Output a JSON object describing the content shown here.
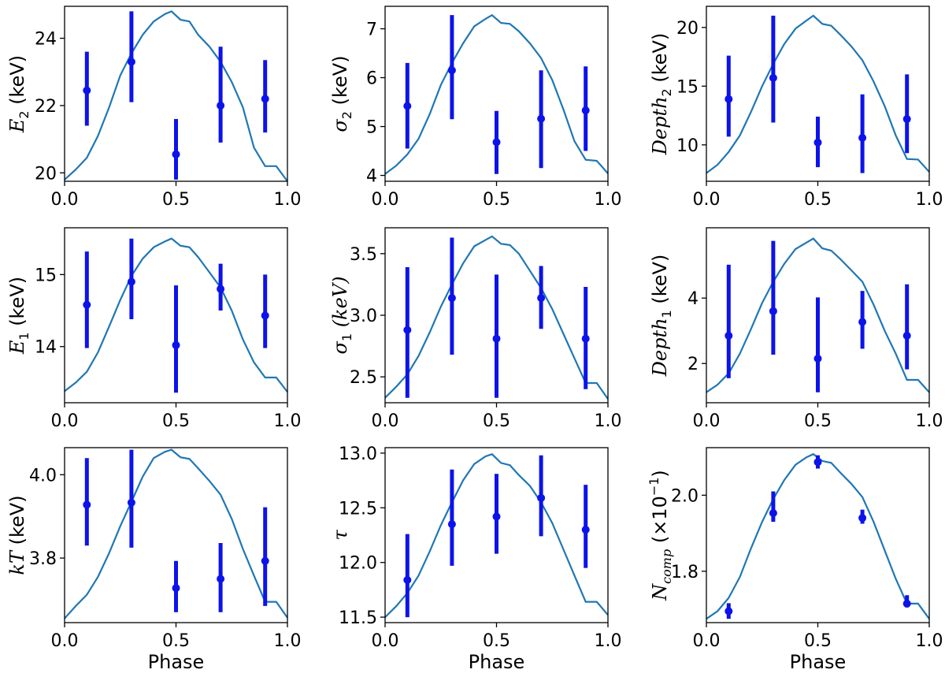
{
  "chart_data": [
    {
      "type": "scatter-errorbar",
      "ylabel": {
        "sym": "E",
        "sub": "2",
        "sup": "",
        "unit": "(keV)",
        "italic_unit": false
      },
      "xlabel": "",
      "xlim": [
        0.0,
        1.0
      ],
      "ylim": [
        19.75,
        24.95
      ],
      "x_ticks": [
        0.0,
        0.5,
        1.0
      ],
      "x_tick_labels": [
        "0.0",
        "0.5",
        "1.0"
      ],
      "y_ticks": [
        20,
        22,
        24
      ],
      "y_tick_labels": [
        "20",
        "22",
        "24"
      ],
      "points": [
        {
          "x": 0.1,
          "y": 22.45,
          "lo": 21.4,
          "hi": 23.6
        },
        {
          "x": 0.3,
          "y": 23.3,
          "lo": 22.1,
          "hi": 24.8
        },
        {
          "x": 0.5,
          "y": 20.55,
          "lo": 19.8,
          "hi": 21.6
        },
        {
          "x": 0.7,
          "y": 22.0,
          "lo": 20.9,
          "hi": 23.75
        },
        {
          "x": 0.9,
          "y": 22.2,
          "lo": 21.2,
          "hi": 23.35
        }
      ],
      "model_x": [
        0.0,
        0.05,
        0.1,
        0.15,
        0.2,
        0.25,
        0.3,
        0.35,
        0.4,
        0.45,
        0.48,
        0.52,
        0.56,
        0.6,
        0.65,
        0.7,
        0.75,
        0.8,
        0.85,
        0.9,
        0.95,
        1.0
      ],
      "model_y": [
        19.8,
        20.1,
        20.45,
        21.1,
        21.95,
        22.9,
        23.55,
        24.1,
        24.5,
        24.72,
        24.8,
        24.55,
        24.5,
        24.1,
        23.75,
        23.3,
        22.7,
        21.95,
        20.75,
        20.2,
        20.2,
        19.75
      ]
    },
    {
      "type": "scatter-errorbar",
      "ylabel": {
        "sym": "σ",
        "sub": "2",
        "sup": "",
        "unit": "(keV)",
        "italic_unit": false
      },
      "xlabel": "",
      "xlim": [
        0.0,
        1.0
      ],
      "ylim": [
        3.88,
        7.46
      ],
      "x_ticks": [
        0.0,
        0.5,
        1.0
      ],
      "x_tick_labels": [
        "0.0",
        "0.5",
        "1.0"
      ],
      "y_ticks": [
        4,
        5,
        6,
        7
      ],
      "y_tick_labels": [
        "4",
        "5",
        "6",
        "7"
      ],
      "points": [
        {
          "x": 0.1,
          "y": 5.42,
          "lo": 4.55,
          "hi": 6.3
        },
        {
          "x": 0.3,
          "y": 6.15,
          "lo": 5.15,
          "hi": 7.28
        },
        {
          "x": 0.5,
          "y": 4.68,
          "lo": 4.03,
          "hi": 5.32
        },
        {
          "x": 0.7,
          "y": 5.16,
          "lo": 4.15,
          "hi": 6.15
        },
        {
          "x": 0.9,
          "y": 5.33,
          "lo": 4.5,
          "hi": 6.23
        }
      ],
      "model_x": [
        0.0,
        0.05,
        0.1,
        0.15,
        0.2,
        0.25,
        0.3,
        0.35,
        0.4,
        0.45,
        0.48,
        0.52,
        0.56,
        0.6,
        0.65,
        0.7,
        0.75,
        0.8,
        0.85,
        0.9,
        0.95,
        1.0
      ],
      "model_y": [
        4.03,
        4.2,
        4.43,
        4.75,
        5.25,
        5.85,
        6.3,
        6.7,
        7.05,
        7.2,
        7.28,
        7.12,
        7.1,
        6.95,
        6.7,
        6.4,
        5.95,
        5.35,
        4.7,
        4.32,
        4.3,
        4.04
      ]
    },
    {
      "type": "scatter-errorbar",
      "ylabel": {
        "sym": "Depth",
        "sub": "2",
        "sup": "",
        "unit": "(keV)",
        "italic_unit": false
      },
      "xlabel": "",
      "xlim": [
        0.0,
        1.0
      ],
      "ylim": [
        6.9,
        21.8
      ],
      "x_ticks": [
        0.0,
        0.5,
        1.0
      ],
      "x_tick_labels": [
        "0.0",
        "0.5",
        "1.0"
      ],
      "y_ticks": [
        10,
        15,
        20
      ],
      "y_tick_labels": [
        "10",
        "15",
        "20"
      ],
      "points": [
        {
          "x": 0.1,
          "y": 13.9,
          "lo": 10.7,
          "hi": 17.6
        },
        {
          "x": 0.3,
          "y": 15.7,
          "lo": 11.9,
          "hi": 21.0
        },
        {
          "x": 0.5,
          "y": 10.2,
          "lo": 8.1,
          "hi": 12.4
        },
        {
          "x": 0.7,
          "y": 10.6,
          "lo": 7.6,
          "hi": 14.3
        },
        {
          "x": 0.9,
          "y": 12.2,
          "lo": 9.3,
          "hi": 16.0
        }
      ],
      "model_x": [
        0.0,
        0.05,
        0.1,
        0.15,
        0.2,
        0.25,
        0.3,
        0.35,
        0.4,
        0.45,
        0.48,
        0.52,
        0.56,
        0.6,
        0.65,
        0.7,
        0.75,
        0.8,
        0.85,
        0.9,
        0.95,
        1.0
      ],
      "model_y": [
        7.6,
        8.3,
        9.4,
        10.8,
        12.8,
        15.0,
        16.9,
        18.6,
        19.9,
        20.6,
        21.0,
        20.3,
        20.15,
        19.4,
        18.4,
        17.2,
        15.4,
        13.3,
        10.8,
        8.8,
        8.75,
        7.7
      ]
    },
    {
      "type": "scatter-errorbar",
      "ylabel": {
        "sym": "E",
        "sub": "1",
        "sup": "",
        "unit": "(keV)",
        "italic_unit": false
      },
      "xlabel": "",
      "xlim": [
        0.0,
        1.0
      ],
      "ylim": [
        13.22,
        15.65
      ],
      "x_ticks": [
        0.0,
        0.5,
        1.0
      ],
      "x_tick_labels": [
        "0.0",
        "0.5",
        "1.0"
      ],
      "y_ticks": [
        14,
        15
      ],
      "y_tick_labels": [
        "14",
        "15"
      ],
      "points": [
        {
          "x": 0.1,
          "y": 14.58,
          "lo": 13.98,
          "hi": 15.32
        },
        {
          "x": 0.3,
          "y": 14.9,
          "lo": 14.38,
          "hi": 15.5
        },
        {
          "x": 0.5,
          "y": 14.02,
          "lo": 13.36,
          "hi": 14.85
        },
        {
          "x": 0.7,
          "y": 14.8,
          "lo": 14.5,
          "hi": 15.15
        },
        {
          "x": 0.9,
          "y": 14.43,
          "lo": 13.98,
          "hi": 15.0
        }
      ],
      "model_x": [
        0.0,
        0.05,
        0.1,
        0.15,
        0.2,
        0.25,
        0.3,
        0.35,
        0.4,
        0.45,
        0.48,
        0.52,
        0.56,
        0.6,
        0.65,
        0.7,
        0.75,
        0.8,
        0.85,
        0.9,
        0.95,
        1.0
      ],
      "model_y": [
        13.38,
        13.5,
        13.65,
        13.92,
        14.28,
        14.65,
        14.98,
        15.22,
        15.38,
        15.46,
        15.5,
        15.4,
        15.38,
        15.24,
        15.03,
        14.82,
        14.5,
        14.1,
        13.78,
        13.57,
        13.57,
        13.37
      ]
    },
    {
      "type": "scatter-errorbar",
      "ylabel": {
        "sym": "σ",
        "sub": "1",
        "sup": "",
        "unit": "(keV)",
        "italic_unit": true
      },
      "xlabel": "",
      "xlim": [
        0.0,
        1.0
      ],
      "ylim": [
        2.29,
        3.71
      ],
      "x_ticks": [
        0.0,
        0.5,
        1.0
      ],
      "x_tick_labels": [
        "0.0",
        "0.5",
        "1.0"
      ],
      "y_ticks": [
        2.5,
        3.0,
        3.5
      ],
      "y_tick_labels": [
        "2.5",
        "3.0",
        "3.5"
      ],
      "points": [
        {
          "x": 0.1,
          "y": 2.88,
          "lo": 2.33,
          "hi": 3.39
        },
        {
          "x": 0.3,
          "y": 3.14,
          "lo": 2.68,
          "hi": 3.63
        },
        {
          "x": 0.5,
          "y": 2.81,
          "lo": 2.33,
          "hi": 3.33
        },
        {
          "x": 0.7,
          "y": 3.14,
          "lo": 2.89,
          "hi": 3.4
        },
        {
          "x": 0.9,
          "y": 2.81,
          "lo": 2.4,
          "hi": 3.23
        }
      ],
      "model_x": [
        0.0,
        0.05,
        0.1,
        0.15,
        0.2,
        0.25,
        0.3,
        0.35,
        0.4,
        0.45,
        0.48,
        0.52,
        0.56,
        0.6,
        0.65,
        0.7,
        0.75,
        0.8,
        0.85,
        0.9,
        0.95,
        1.0
      ],
      "model_y": [
        2.33,
        2.42,
        2.52,
        2.67,
        2.86,
        3.07,
        3.25,
        3.42,
        3.56,
        3.61,
        3.64,
        3.58,
        3.57,
        3.5,
        3.36,
        3.22,
        3.05,
        2.85,
        2.65,
        2.45,
        2.45,
        2.32
      ]
    },
    {
      "type": "scatter-errorbar",
      "ylabel": {
        "sym": "Depth",
        "sub": "1",
        "sup": "",
        "unit": "(keV)",
        "italic_unit": false
      },
      "xlabel": "",
      "xlim": [
        0.0,
        1.0
      ],
      "ylim": [
        0.8,
        6.15
      ],
      "x_ticks": [
        0.0,
        0.5,
        1.0
      ],
      "x_tick_labels": [
        "0.0",
        "0.5",
        "1.0"
      ],
      "y_ticks": [
        2,
        4
      ],
      "y_tick_labels": [
        "2",
        "4"
      ],
      "points": [
        {
          "x": 0.1,
          "y": 2.85,
          "lo": 1.55,
          "hi": 5.02
        },
        {
          "x": 0.3,
          "y": 3.6,
          "lo": 2.27,
          "hi": 5.75
        },
        {
          "x": 0.5,
          "y": 2.15,
          "lo": 1.12,
          "hi": 4.02
        },
        {
          "x": 0.7,
          "y": 3.27,
          "lo": 2.45,
          "hi": 4.22
        },
        {
          "x": 0.9,
          "y": 2.85,
          "lo": 1.82,
          "hi": 4.42
        }
      ],
      "model_x": [
        0.0,
        0.05,
        0.1,
        0.15,
        0.2,
        0.25,
        0.3,
        0.35,
        0.4,
        0.45,
        0.48,
        0.52,
        0.56,
        0.6,
        0.65,
        0.7,
        0.75,
        0.8,
        0.85,
        0.9,
        0.95,
        1.0
      ],
      "model_y": [
        1.12,
        1.35,
        1.7,
        2.3,
        3.05,
        3.85,
        4.5,
        5.05,
        5.5,
        5.7,
        5.82,
        5.52,
        5.45,
        5.2,
        4.85,
        4.5,
        3.8,
        3.0,
        2.3,
        1.5,
        1.5,
        1.12
      ]
    },
    {
      "type": "scatter-errorbar",
      "ylabel": {
        "sym": "kT",
        "sub": "",
        "sup": "",
        "unit": "(keV)",
        "italic_unit": false
      },
      "xlabel": "Phase",
      "xlim": [
        0.0,
        1.0
      ],
      "ylim": [
        3.645,
        4.065
      ],
      "x_ticks": [
        0.0,
        0.5,
        1.0
      ],
      "x_tick_labels": [
        "0.0",
        "0.5",
        "1.0"
      ],
      "y_ticks": [
        3.8,
        4.0
      ],
      "y_tick_labels": [
        "3.8",
        "4.0"
      ],
      "points": [
        {
          "x": 0.1,
          "y": 3.928,
          "lo": 3.83,
          "hi": 4.04
        },
        {
          "x": 0.3,
          "y": 3.933,
          "lo": 3.825,
          "hi": 4.06
        },
        {
          "x": 0.5,
          "y": 3.728,
          "lo": 3.67,
          "hi": 3.793
        },
        {
          "x": 0.7,
          "y": 3.75,
          "lo": 3.67,
          "hi": 3.836
        },
        {
          "x": 0.9,
          "y": 3.793,
          "lo": 3.685,
          "hi": 3.922
        }
      ],
      "model_x": [
        0.0,
        0.05,
        0.1,
        0.15,
        0.2,
        0.25,
        0.3,
        0.35,
        0.4,
        0.45,
        0.48,
        0.52,
        0.56,
        0.6,
        0.65,
        0.7,
        0.75,
        0.8,
        0.85,
        0.9,
        0.95,
        1.0
      ],
      "model_y": [
        3.655,
        3.685,
        3.712,
        3.755,
        3.812,
        3.877,
        3.935,
        3.995,
        4.04,
        4.055,
        4.06,
        4.042,
        4.038,
        4.015,
        3.985,
        3.952,
        3.894,
        3.822,
        3.758,
        3.695,
        3.695,
        3.657
      ]
    },
    {
      "type": "scatter-errorbar",
      "ylabel": {
        "sym": "τ",
        "sub": "",
        "sup": "",
        "unit": "",
        "italic_unit": false
      },
      "xlabel": "Phase",
      "xlim": [
        0.0,
        1.0
      ],
      "ylim": [
        11.45,
        13.05
      ],
      "x_ticks": [
        0.0,
        0.5,
        1.0
      ],
      "x_tick_labels": [
        "0.0",
        "0.5",
        "1.0"
      ],
      "y_ticks": [
        11.5,
        12.0,
        12.5,
        13.0
      ],
      "y_tick_labels": [
        "11.5",
        "12.0",
        "12.5",
        "13.0"
      ],
      "points": [
        {
          "x": 0.1,
          "y": 11.84,
          "lo": 11.5,
          "hi": 12.26
        },
        {
          "x": 0.3,
          "y": 12.35,
          "lo": 11.97,
          "hi": 12.85
        },
        {
          "x": 0.5,
          "y": 12.42,
          "lo": 12.08,
          "hi": 12.81
        },
        {
          "x": 0.7,
          "y": 12.59,
          "lo": 12.24,
          "hi": 12.98
        },
        {
          "x": 0.9,
          "y": 12.3,
          "lo": 11.95,
          "hi": 12.71
        }
      ],
      "model_x": [
        0.0,
        0.05,
        0.1,
        0.15,
        0.2,
        0.25,
        0.3,
        0.35,
        0.4,
        0.45,
        0.48,
        0.52,
        0.56,
        0.6,
        0.65,
        0.7,
        0.75,
        0.8,
        0.85,
        0.9,
        0.95,
        1.0
      ],
      "model_y": [
        11.5,
        11.6,
        11.72,
        11.88,
        12.1,
        12.34,
        12.55,
        12.75,
        12.9,
        12.97,
        12.99,
        12.91,
        12.89,
        12.8,
        12.7,
        12.55,
        12.36,
        12.12,
        11.88,
        11.64,
        11.64,
        11.52
      ]
    },
    {
      "type": "scatter-errorbar",
      "ylabel": {
        "sym": "N",
        "sub": "comp",
        "sup": "",
        "unit": "(×10",
        "unit_sup": "−1",
        "unit_end": ")",
        "italic_unit": false
      },
      "xlabel": "Phase",
      "xlim": [
        0.0,
        1.0
      ],
      "ylim": [
        1.665,
        2.125
      ],
      "x_ticks": [
        0.0,
        0.5,
        1.0
      ],
      "x_tick_labels": [
        "0.0",
        "0.5",
        "1.0"
      ],
      "y_ticks": [
        1.8,
        2.0
      ],
      "y_tick_labels": [
        "1.8",
        "2.0"
      ],
      "points": [
        {
          "x": 0.1,
          "y": 1.695,
          "lo": 1.675,
          "hi": 1.716
        },
        {
          "x": 0.3,
          "y": 1.953,
          "lo": 1.93,
          "hi": 2.01
        },
        {
          "x": 0.5,
          "y": 2.087,
          "lo": 2.07,
          "hi": 2.105
        },
        {
          "x": 0.7,
          "y": 1.94,
          "lo": 1.925,
          "hi": 1.962
        },
        {
          "x": 0.9,
          "y": 1.715,
          "lo": 1.705,
          "hi": 1.737
        }
      ],
      "model_x": [
        0.0,
        0.05,
        0.1,
        0.15,
        0.2,
        0.25,
        0.3,
        0.35,
        0.4,
        0.45,
        0.48,
        0.52,
        0.56,
        0.6,
        0.65,
        0.7,
        0.75,
        0.8,
        0.85,
        0.9,
        0.95,
        1.0
      ],
      "model_y": [
        1.675,
        1.695,
        1.73,
        1.785,
        1.86,
        1.93,
        1.99,
        2.04,
        2.08,
        2.1,
        2.108,
        2.09,
        2.085,
        2.06,
        2.03,
        1.995,
        1.93,
        1.855,
        1.78,
        1.715,
        1.715,
        1.675
      ]
    }
  ],
  "colors": {
    "data_points": "#0c13ea",
    "model_line": "#1f77b4",
    "axes": "#000000",
    "background": "#ffffff"
  }
}
